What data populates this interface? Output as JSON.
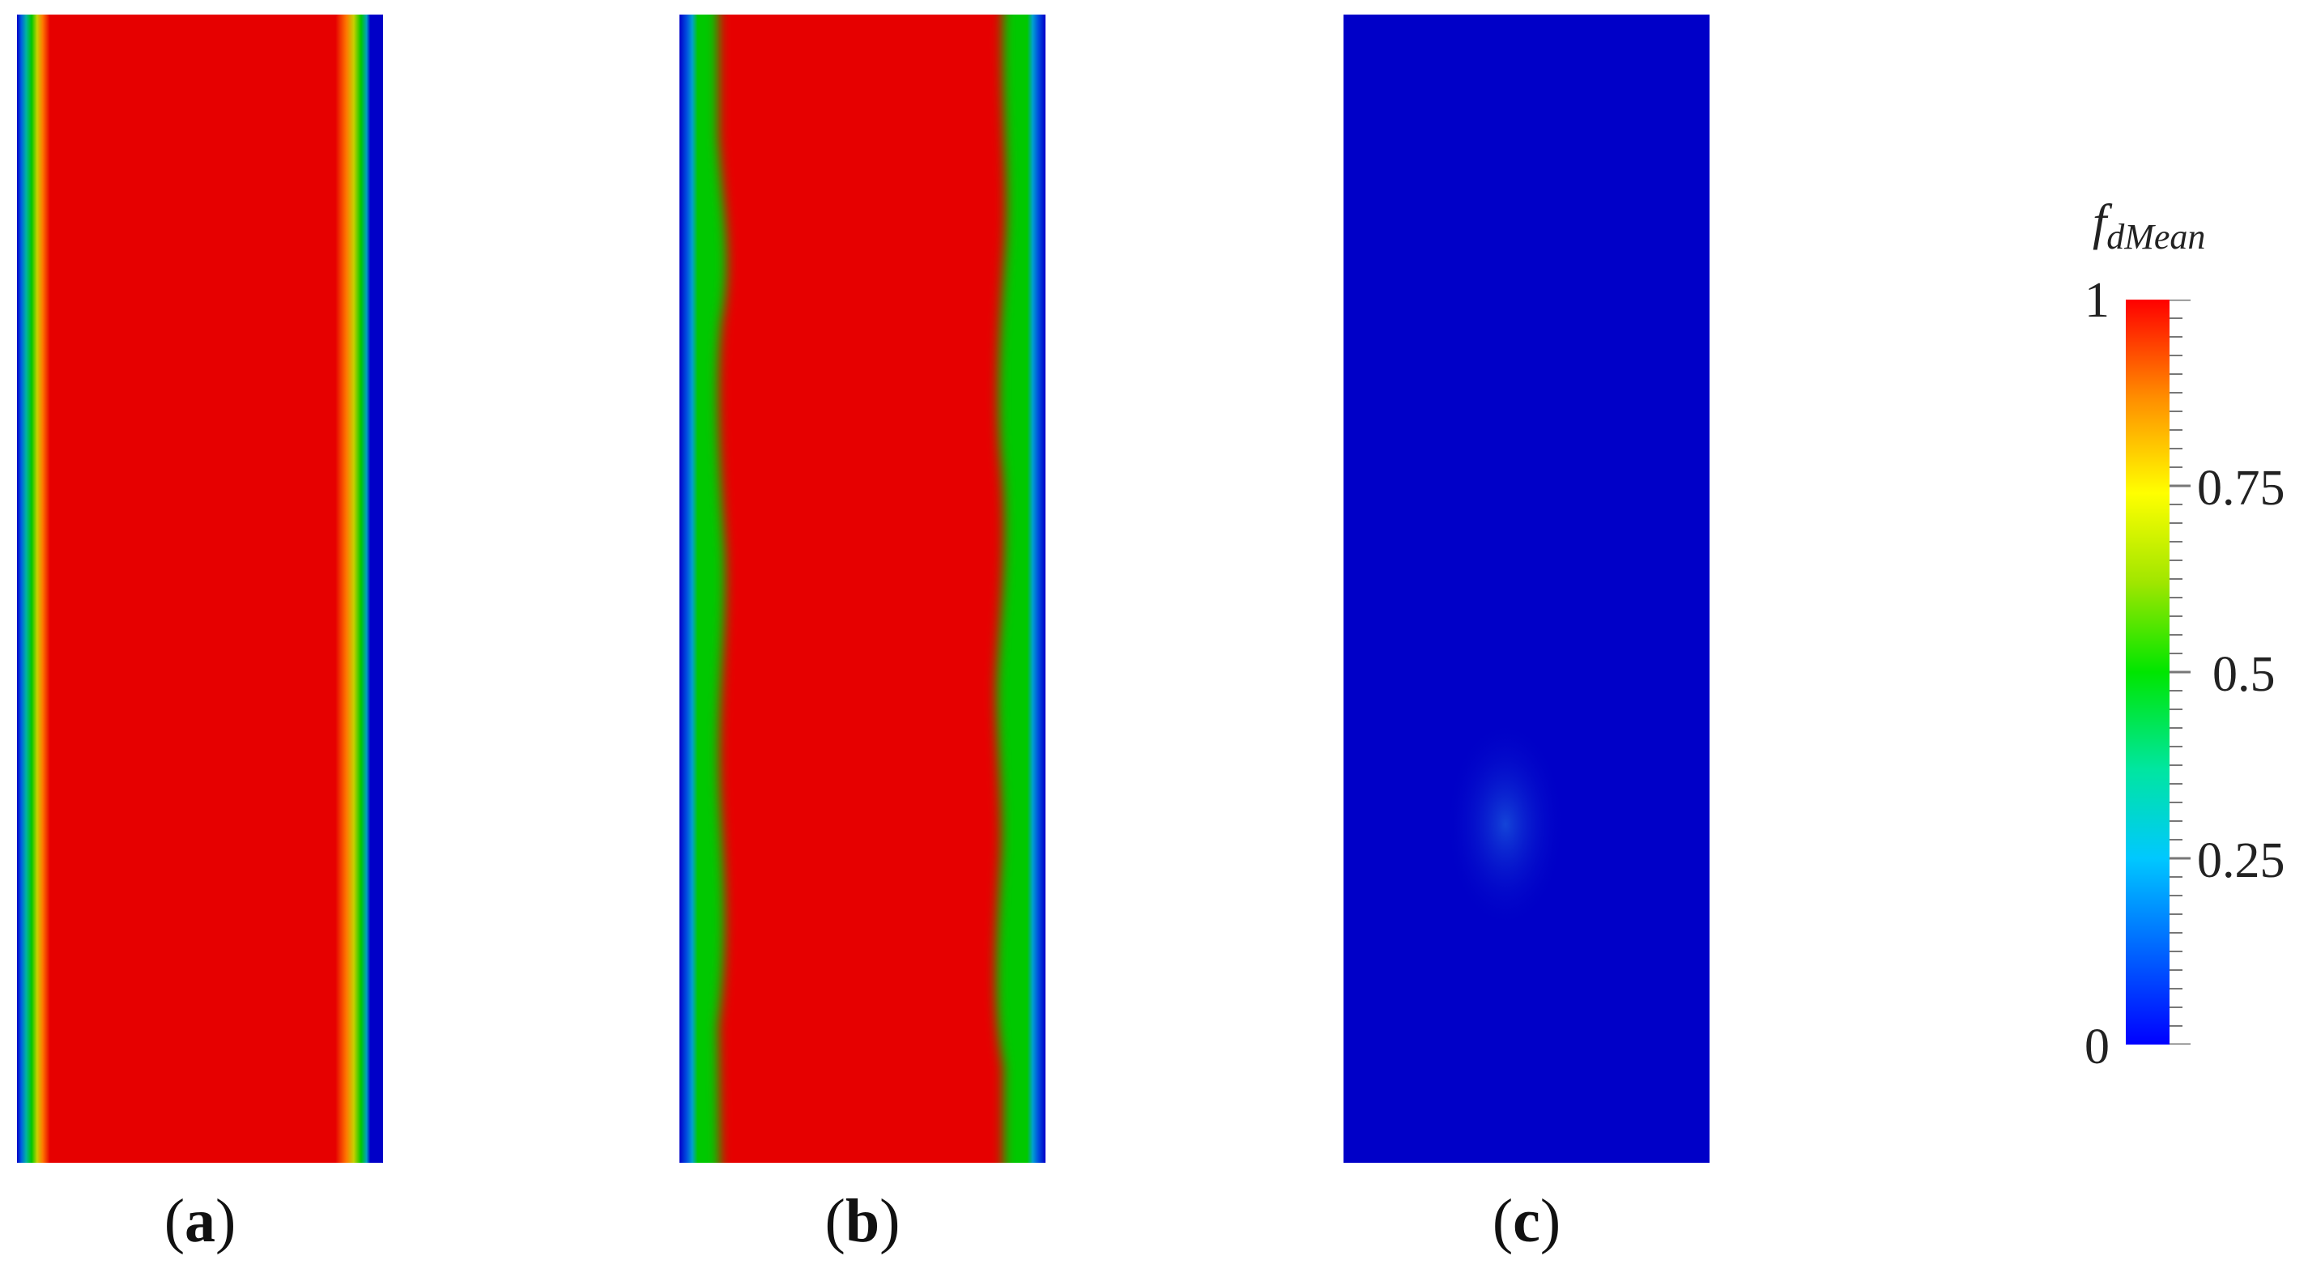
{
  "figure": {
    "panels": [
      {
        "id": "a",
        "caption_letter": "a",
        "field": "mostly-high"
      },
      {
        "id": "b",
        "caption_letter": "b",
        "field": "mostly-high-wavy-edges"
      },
      {
        "id": "c",
        "caption_letter": "c",
        "field": "low"
      }
    ],
    "colorbar": {
      "title_main": "f",
      "title_sub": "dMean",
      "min": 0,
      "max": 1,
      "tick_labels": {
        "t1": "1",
        "t075": "0.75",
        "t05": "0.5",
        "t025": "0.25",
        "t0": "0"
      },
      "colormap": [
        "#0000ff",
        "#00c8ff",
        "#00e600",
        "#ffff00",
        "#ff0000"
      ]
    }
  },
  "colors": {
    "red": "#e60000",
    "blue": "#0000c8",
    "green": "#00c800"
  }
}
